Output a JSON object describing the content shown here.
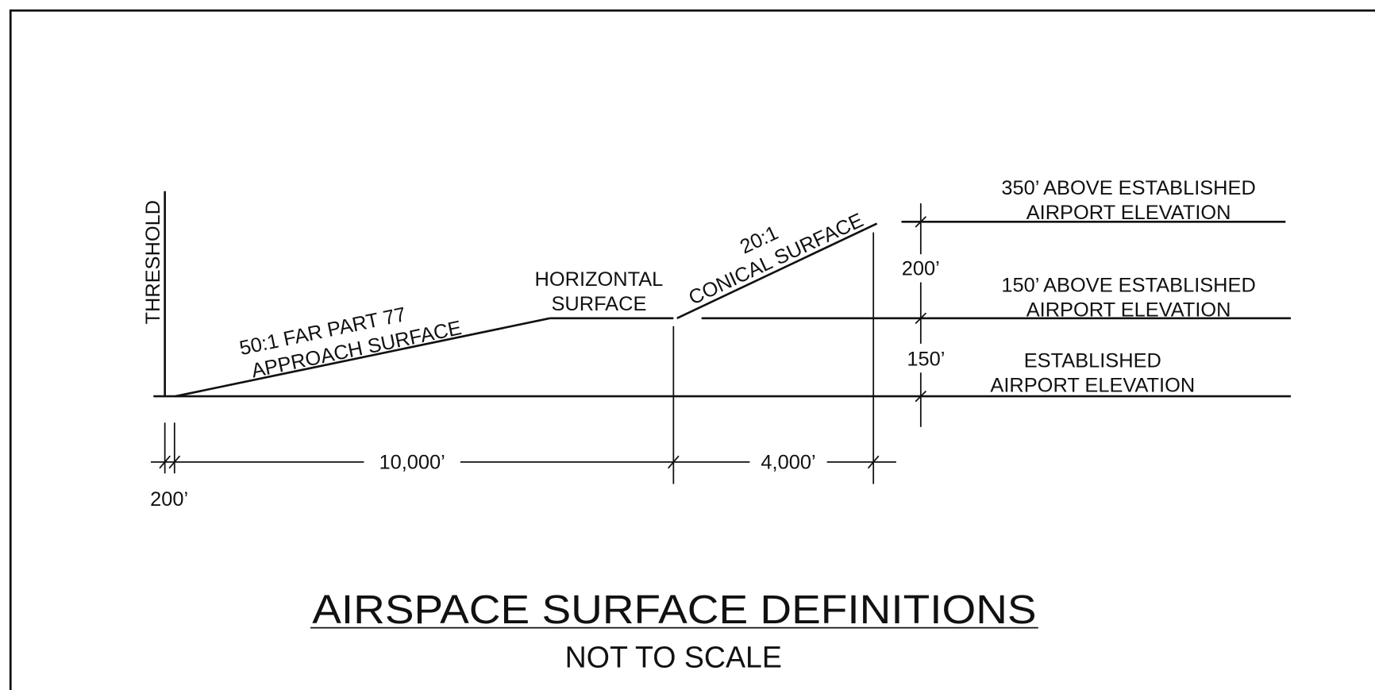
{
  "threshold": "THRESHOLD",
  "approach": {
    "line1": "50:1 FAR PART 77",
    "line2": "APPROACH SURFACE"
  },
  "horizontal": {
    "line1": "HORIZONTAL",
    "line2": "SURFACE"
  },
  "conical": {
    "line1": "20:1",
    "line2": "CONICAL SURFACE"
  },
  "elevations": [
    {
      "line1": "350’ ABOVE ESTABLISHED",
      "line2": "AIRPORT ELEVATION"
    },
    {
      "line1": "150’ ABOVE ESTABLISHED",
      "line2": "AIRPORT ELEVATION"
    },
    {
      "line1": "ESTABLISHED",
      "line2": "AIRPORT ELEVATION"
    }
  ],
  "dimensions": {
    "threshold_offset": "200’",
    "approach_length": "10,000’",
    "conical_length": "4,000’",
    "upper_height": "200’",
    "lower_height": "150’"
  },
  "title": "AIRSPACE SURFACE DEFINITIONS",
  "subtitle": "NOT TO SCALE"
}
